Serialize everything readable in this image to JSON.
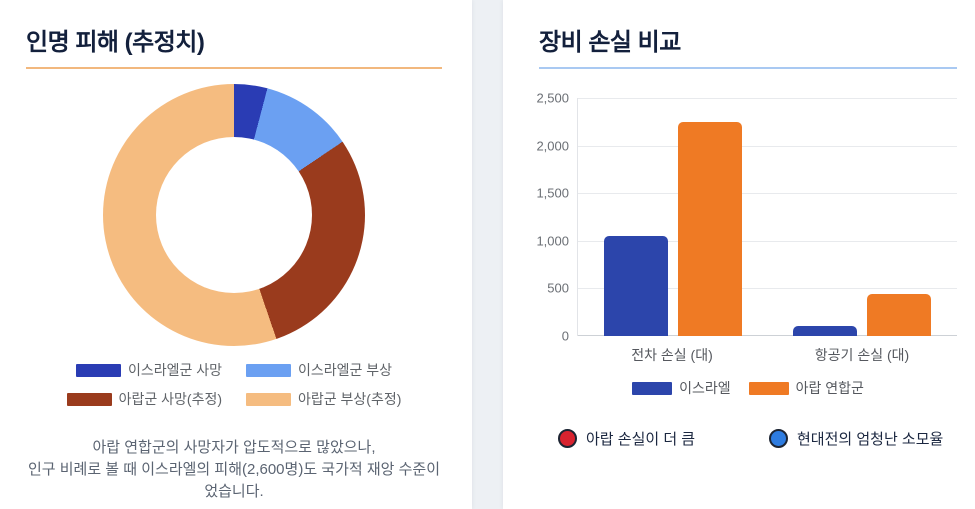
{
  "page": {
    "background": "#edf0f4",
    "card_background": "#ffffff"
  },
  "left_panel": {
    "title": "인명 피해 (추정치)",
    "accent_color": "#f2b87e",
    "caption": "아랍 연합군의 사망자가 압도적으로 많았으나,\n인구 비례로 볼 때 이스라엘의 피해(2,600명)도 국가적 재앙 수준이\n었습니다."
  },
  "right_panel": {
    "title": "장비 손실 비교",
    "accent_color": "#a9c9f2",
    "notes": [
      {
        "icon": "red-dot",
        "dot_color": "#d8232f",
        "label": "아랍 손실이 더 큼"
      },
      {
        "icon": "blue-dot",
        "dot_color": "#2e7ce0",
        "label": "현대전의 엄청난 소모율"
      }
    ]
  },
  "chart_data": [
    {
      "type": "pie",
      "subtype": "donut",
      "title": "인명 피해 (추정치)",
      "legend_position": "bottom",
      "start_angle_deg": 0,
      "segments": [
        {
          "label": "이스라엘군 사망",
          "value": 2600,
          "percent": 4.1,
          "color": "#2a3cb4"
        },
        {
          "label": "이스라엘군 부상",
          "value": 7250,
          "percent": 11.4,
          "color": "#6ba0f2"
        },
        {
          "label": "아랍군 사망(추정)",
          "value": 18500,
          "percent": 29.2,
          "color": "#9a3b1d"
        },
        {
          "label": "아랍군 부상(추정)",
          "value": 35000,
          "percent": 55.3,
          "color": "#f5bc80"
        }
      ]
    },
    {
      "type": "bar",
      "title": "장비 손실 비교",
      "categories": [
        "전차 손실 (대)",
        "항공기 손실 (대)"
      ],
      "series": [
        {
          "name": "이스라엘",
          "color": "#2c45ab",
          "values": [
            1050,
            100
          ]
        },
        {
          "name": "아랍 연합군",
          "color": "#ef7a24",
          "values": [
            2250,
            440
          ]
        }
      ],
      "ylim": [
        0,
        2500
      ],
      "yticks": [
        "2,500",
        "2,000",
        "1,500",
        "1,000",
        "500",
        "0"
      ],
      "grid": true,
      "legend_position": "bottom"
    }
  ]
}
